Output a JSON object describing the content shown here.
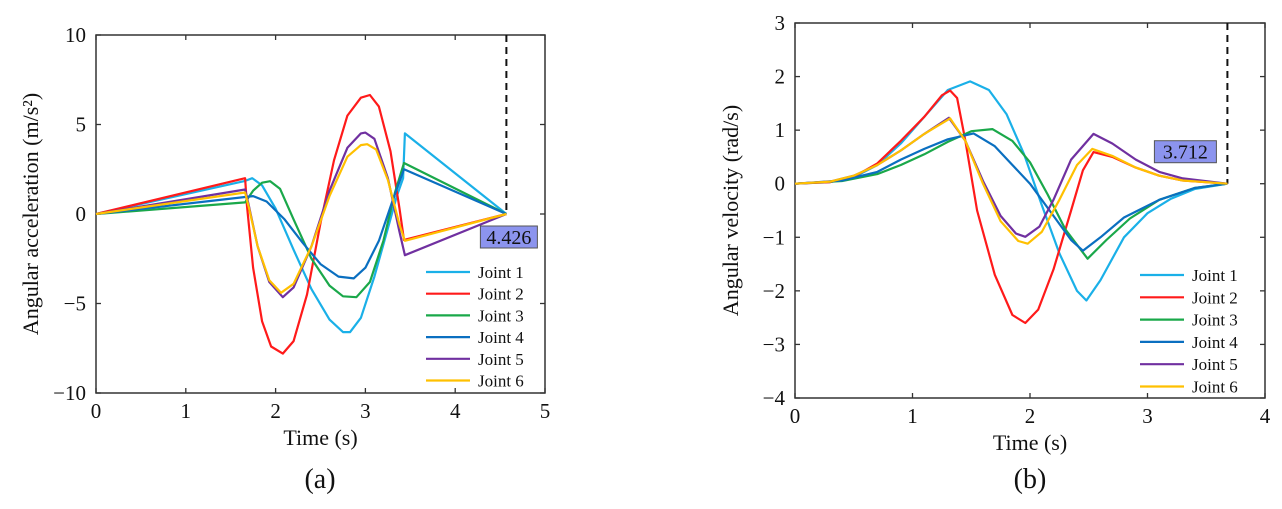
{
  "chart_data": [
    {
      "type": "line",
      "caption": "(a)",
      "xlabel": "Time (s)",
      "ylabel": "Angular acceleration (m/s²)",
      "xlim": [
        0,
        5
      ],
      "ylim": [
        -10,
        10
      ],
      "xticks": [
        0,
        1,
        2,
        3,
        4,
        5
      ],
      "xtick_labels": [
        "0",
        "1",
        "2",
        "3",
        "4",
        "5"
      ],
      "yticks": [
        -10,
        -5,
        0,
        5,
        10
      ],
      "ytick_labels": [
        "−10",
        "−5",
        "0",
        "5",
        "10"
      ],
      "grid": false,
      "legend_position": "bottom-right",
      "marker": {
        "x": 4.57,
        "label": "4.426"
      },
      "series": [
        {
          "name": "Joint 1",
          "color": "#1ab0e8",
          "points": [
            [
              0,
              0
            ],
            [
              1.66,
              1.85
            ],
            [
              1.74,
              2.0
            ],
            [
              1.85,
              1.6
            ],
            [
              2.0,
              0.3
            ],
            [
              2.2,
              -2
            ],
            [
              2.4,
              -4.2
            ],
            [
              2.6,
              -5.9
            ],
            [
              2.75,
              -6.6
            ],
            [
              2.83,
              -6.6
            ],
            [
              2.95,
              -5.8
            ],
            [
              3.1,
              -3.5
            ],
            [
              3.25,
              -0.8
            ],
            [
              3.35,
              1.0
            ],
            [
              3.42,
              2.0
            ],
            [
              3.44,
              4.5
            ],
            [
              4.57,
              0
            ]
          ]
        },
        {
          "name": "Joint 2",
          "color": "#ff1a1a",
          "points": [
            [
              0,
              0
            ],
            [
              1.66,
              2.0
            ],
            [
              1.68,
              0.5
            ],
            [
              1.75,
              -3
            ],
            [
              1.85,
              -6
            ],
            [
              1.95,
              -7.4
            ],
            [
              2.08,
              -7.8
            ],
            [
              2.2,
              -7.1
            ],
            [
              2.35,
              -4.5
            ],
            [
              2.5,
              -0.5
            ],
            [
              2.65,
              3
            ],
            [
              2.8,
              5.5
            ],
            [
              2.95,
              6.5
            ],
            [
              3.05,
              6.65
            ],
            [
              3.15,
              6.0
            ],
            [
              3.28,
              3.5
            ],
            [
              3.38,
              0.3
            ],
            [
              3.43,
              -1.45
            ],
            [
              4.57,
              0
            ]
          ]
        },
        {
          "name": "Joint 3",
          "color": "#1aa84a",
          "points": [
            [
              0,
              0
            ],
            [
              1.66,
              0.65
            ],
            [
              1.75,
              1.3
            ],
            [
              1.85,
              1.75
            ],
            [
              1.94,
              1.83
            ],
            [
              2.05,
              1.4
            ],
            [
              2.2,
              -0.3
            ],
            [
              2.4,
              -2.5
            ],
            [
              2.6,
              -4.0
            ],
            [
              2.75,
              -4.6
            ],
            [
              2.9,
              -4.65
            ],
            [
              3.05,
              -3.8
            ],
            [
              3.2,
              -1.5
            ],
            [
              3.33,
              1.2
            ],
            [
              3.43,
              2.85
            ],
            [
              4.57,
              0
            ]
          ]
        },
        {
          "name": "Joint 4",
          "color": "#0a6fc0",
          "points": [
            [
              0,
              0
            ],
            [
              1.66,
              0.95
            ],
            [
              1.75,
              1.0
            ],
            [
              1.9,
              0.7
            ],
            [
              2.1,
              -0.3
            ],
            [
              2.3,
              -1.6
            ],
            [
              2.5,
              -2.8
            ],
            [
              2.7,
              -3.5
            ],
            [
              2.87,
              -3.6
            ],
            [
              3.0,
              -3.0
            ],
            [
              3.15,
              -1.5
            ],
            [
              3.3,
              0.7
            ],
            [
              3.43,
              2.5
            ],
            [
              4.57,
              0
            ]
          ]
        },
        {
          "name": "Joint 5",
          "color": "#7030a0",
          "points": [
            [
              0,
              0
            ],
            [
              1.66,
              1.37
            ],
            [
              1.7,
              0.5
            ],
            [
              1.8,
              -1.8
            ],
            [
              1.93,
              -3.8
            ],
            [
              2.08,
              -4.65
            ],
            [
              2.2,
              -4.1
            ],
            [
              2.4,
              -1.8
            ],
            [
              2.6,
              1.3
            ],
            [
              2.8,
              3.7
            ],
            [
              2.95,
              4.5
            ],
            [
              3.0,
              4.55
            ],
            [
              3.1,
              4.2
            ],
            [
              3.25,
              2.0
            ],
            [
              3.38,
              -1.0
            ],
            [
              3.44,
              -2.3
            ],
            [
              4.57,
              0
            ]
          ]
        },
        {
          "name": "Joint 6",
          "color": "#ffc000",
          "points": [
            [
              0,
              0
            ],
            [
              1.66,
              1.2
            ],
            [
              1.7,
              0.4
            ],
            [
              1.8,
              -1.8
            ],
            [
              1.93,
              -3.7
            ],
            [
              2.06,
              -4.4
            ],
            [
              2.2,
              -3.9
            ],
            [
              2.4,
              -1.8
            ],
            [
              2.6,
              1.0
            ],
            [
              2.8,
              3.2
            ],
            [
              2.95,
              3.85
            ],
            [
              3.02,
              3.9
            ],
            [
              3.12,
              3.6
            ],
            [
              3.25,
              1.9
            ],
            [
              3.38,
              -0.6
            ],
            [
              3.44,
              -1.5
            ],
            [
              4.57,
              0
            ]
          ]
        }
      ]
    },
    {
      "type": "line",
      "caption": "(b)",
      "xlabel": "Time (s)",
      "ylabel": "Angular velocity (rad/s)",
      "xlim": [
        0,
        4
      ],
      "ylim": [
        -4,
        3
      ],
      "xticks": [
        0,
        1,
        2,
        3,
        4
      ],
      "xtick_labels": [
        "0",
        "1",
        "2",
        "3",
        "4"
      ],
      "yticks": [
        -4,
        -3,
        -2,
        -1,
        0,
        1,
        2,
        3
      ],
      "ytick_labels": [
        "−4",
        "−3",
        "−2",
        "−1",
        "0",
        "1",
        "2",
        "3"
      ],
      "grid": false,
      "legend_position": "bottom-right",
      "marker": {
        "x": 3.68,
        "label": "3.712"
      },
      "series": [
        {
          "name": "Joint 1",
          "color": "#1ab0e8",
          "points": [
            [
              0,
              0
            ],
            [
              0.3,
              0.03
            ],
            [
              0.5,
              0.12
            ],
            [
              0.7,
              0.35
            ],
            [
              0.9,
              0.75
            ],
            [
              1.1,
              1.25
            ],
            [
              1.3,
              1.75
            ],
            [
              1.49,
              1.91
            ],
            [
              1.65,
              1.75
            ],
            [
              1.8,
              1.3
            ],
            [
              1.95,
              0.55
            ],
            [
              2.1,
              -0.4
            ],
            [
              2.25,
              -1.3
            ],
            [
              2.4,
              -2.0
            ],
            [
              2.48,
              -2.18
            ],
            [
              2.6,
              -1.8
            ],
            [
              2.8,
              -1.0
            ],
            [
              3.0,
              -0.55
            ],
            [
              3.2,
              -0.28
            ],
            [
              3.4,
              -0.1
            ],
            [
              3.68,
              0
            ]
          ]
        },
        {
          "name": "Joint 2",
          "color": "#ff1a1a",
          "points": [
            [
              0,
              0
            ],
            [
              0.3,
              0.03
            ],
            [
              0.5,
              0.13
            ],
            [
              0.7,
              0.38
            ],
            [
              0.9,
              0.8
            ],
            [
              1.1,
              1.25
            ],
            [
              1.25,
              1.65
            ],
            [
              1.32,
              1.74
            ],
            [
              1.38,
              1.6
            ],
            [
              1.45,
              0.8
            ],
            [
              1.55,
              -0.5
            ],
            [
              1.7,
              -1.7
            ],
            [
              1.85,
              -2.45
            ],
            [
              1.96,
              -2.6
            ],
            [
              2.07,
              -2.35
            ],
            [
              2.2,
              -1.6
            ],
            [
              2.35,
              -0.5
            ],
            [
              2.45,
              0.25
            ],
            [
              2.54,
              0.59
            ],
            [
              2.7,
              0.5
            ],
            [
              2.9,
              0.3
            ],
            [
              3.1,
              0.15
            ],
            [
              3.3,
              0.06
            ],
            [
              3.68,
              0
            ]
          ]
        },
        {
          "name": "Joint 3",
          "color": "#1aa84a",
          "points": [
            [
              0,
              0
            ],
            [
              0.4,
              0.05
            ],
            [
              0.7,
              0.18
            ],
            [
              0.9,
              0.35
            ],
            [
              1.1,
              0.55
            ],
            [
              1.3,
              0.78
            ],
            [
              1.5,
              0.98
            ],
            [
              1.68,
              1.02
            ],
            [
              1.85,
              0.8
            ],
            [
              2.0,
              0.4
            ],
            [
              2.15,
              -0.2
            ],
            [
              2.3,
              -0.85
            ],
            [
              2.49,
              -1.4
            ],
            [
              2.65,
              -1.05
            ],
            [
              2.85,
              -0.65
            ],
            [
              3.1,
              -0.3
            ],
            [
              3.4,
              -0.08
            ],
            [
              3.68,
              0
            ]
          ]
        },
        {
          "name": "Joint 4",
          "color": "#0a6fc0",
          "points": [
            [
              0,
              0
            ],
            [
              0.4,
              0.06
            ],
            [
              0.7,
              0.22
            ],
            [
              0.9,
              0.45
            ],
            [
              1.1,
              0.65
            ],
            [
              1.3,
              0.83
            ],
            [
              1.52,
              0.94
            ],
            [
              1.7,
              0.7
            ],
            [
              1.85,
              0.35
            ],
            [
              2.0,
              0
            ],
            [
              2.2,
              -0.6
            ],
            [
              2.35,
              -1.05
            ],
            [
              2.45,
              -1.25
            ],
            [
              2.6,
              -1.0
            ],
            [
              2.8,
              -0.63
            ],
            [
              3.1,
              -0.3
            ],
            [
              3.4,
              -0.08
            ],
            [
              3.68,
              0
            ]
          ]
        },
        {
          "name": "Joint 5",
          "color": "#7030a0",
          "points": [
            [
              0,
              0
            ],
            [
              0.3,
              0.04
            ],
            [
              0.5,
              0.15
            ],
            [
              0.7,
              0.35
            ],
            [
              0.9,
              0.62
            ],
            [
              1.1,
              0.93
            ],
            [
              1.31,
              1.23
            ],
            [
              1.45,
              0.8
            ],
            [
              1.6,
              0.05
            ],
            [
              1.75,
              -0.6
            ],
            [
              1.88,
              -0.93
            ],
            [
              1.96,
              -0.99
            ],
            [
              2.08,
              -0.8
            ],
            [
              2.2,
              -0.3
            ],
            [
              2.35,
              0.45
            ],
            [
              2.54,
              0.93
            ],
            [
              2.7,
              0.75
            ],
            [
              2.9,
              0.45
            ],
            [
              3.1,
              0.22
            ],
            [
              3.3,
              0.1
            ],
            [
              3.68,
              0
            ]
          ]
        },
        {
          "name": "Joint 6",
          "color": "#ffc000",
          "points": [
            [
              0,
              0
            ],
            [
              0.3,
              0.04
            ],
            [
              0.5,
              0.15
            ],
            [
              0.7,
              0.35
            ],
            [
              0.9,
              0.62
            ],
            [
              1.1,
              0.93
            ],
            [
              1.32,
              1.22
            ],
            [
              1.45,
              0.8
            ],
            [
              1.6,
              0.0
            ],
            [
              1.75,
              -0.7
            ],
            [
              1.9,
              -1.07
            ],
            [
              1.98,
              -1.12
            ],
            [
              2.1,
              -0.9
            ],
            [
              2.25,
              -0.3
            ],
            [
              2.4,
              0.35
            ],
            [
              2.53,
              0.65
            ],
            [
              2.7,
              0.52
            ],
            [
              2.9,
              0.3
            ],
            [
              3.1,
              0.15
            ],
            [
              3.3,
              0.06
            ],
            [
              3.68,
              0
            ]
          ]
        }
      ]
    }
  ]
}
